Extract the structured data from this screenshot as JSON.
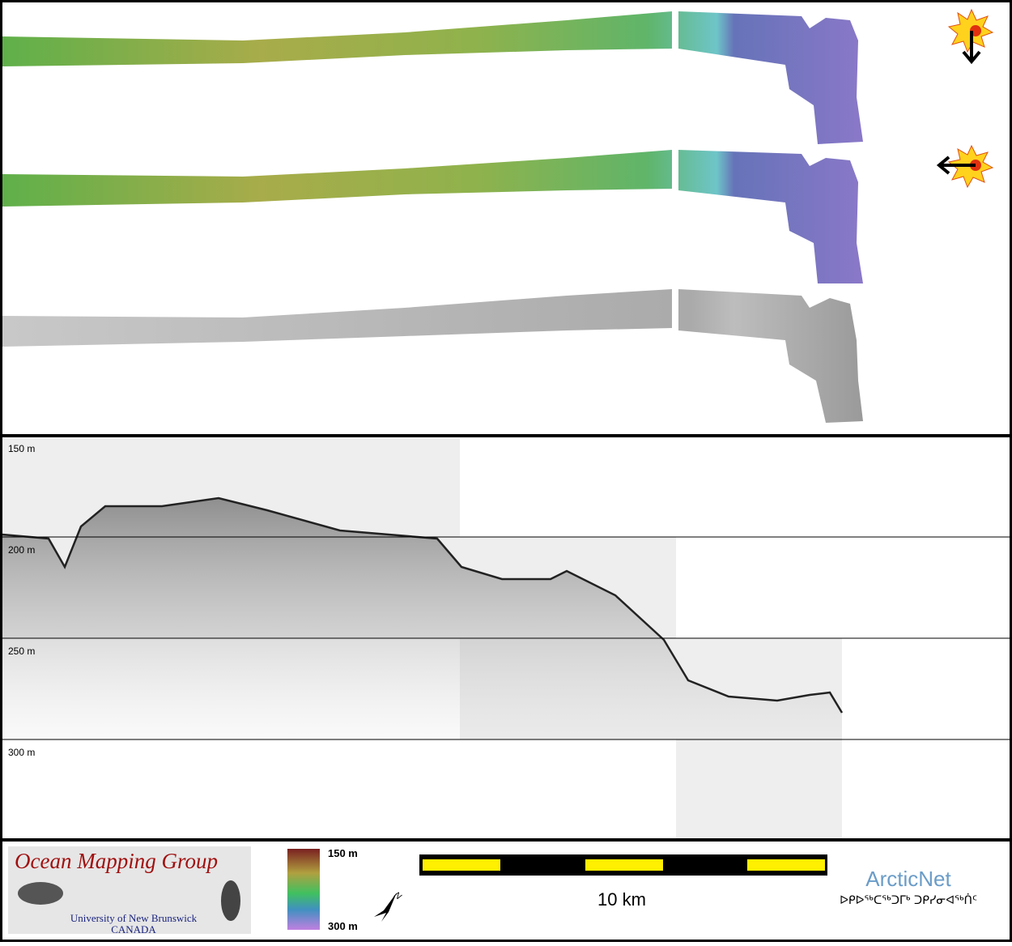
{
  "profile": {
    "depth_labels": [
      "150 m",
      "200 m",
      "250 m",
      "300 m"
    ]
  },
  "footer": {
    "logo": {
      "title": "Ocean Mapping Group",
      "university": "University of New Brunswick",
      "country": "CANADA"
    },
    "colorbar": {
      "top": "150 m",
      "bottom": "300 m"
    },
    "compass": "N",
    "scale_bar": "10 km",
    "partner": {
      "name": "ArcticNet",
      "syllabics": "ᐅᑭᐅᖅᑕᖅᑐᒥᒃ ᑐᑭᓯᓂᐊᖅᑏᑦ"
    }
  }
}
